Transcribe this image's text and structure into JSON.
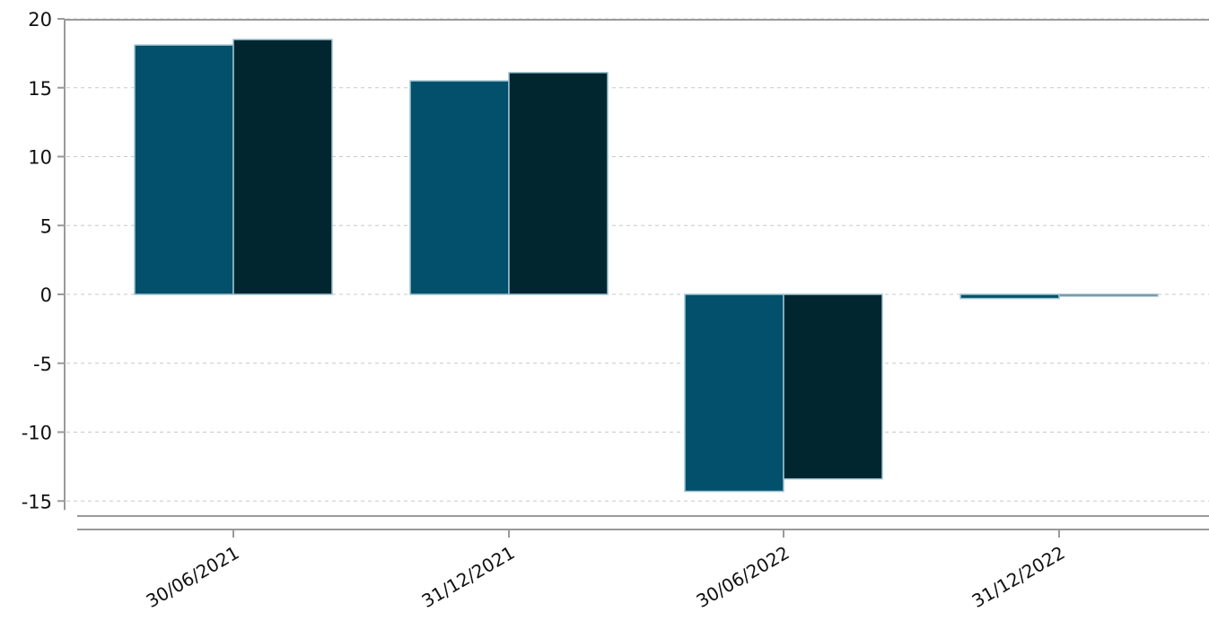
{
  "chart_data": {
    "type": "bar",
    "title": "",
    "xlabel": "",
    "ylabel": "",
    "categories": [
      "30/06/2021",
      "31/12/2021",
      "30/06/2022",
      "31/12/2022"
    ],
    "series": [
      {
        "values": [
          18.1,
          15.5,
          -14.3,
          -0.3
        ],
        "color": "#02506b"
      },
      {
        "values": [
          18.5,
          16.1,
          -13.4,
          -0.1
        ],
        "color": "#022630"
      }
    ],
    "ylim": [
      -15,
      20
    ],
    "yticks": [
      20,
      15,
      10,
      5,
      0,
      -5,
      -10,
      -15
    ],
    "grid": true,
    "legend": "none"
  }
}
